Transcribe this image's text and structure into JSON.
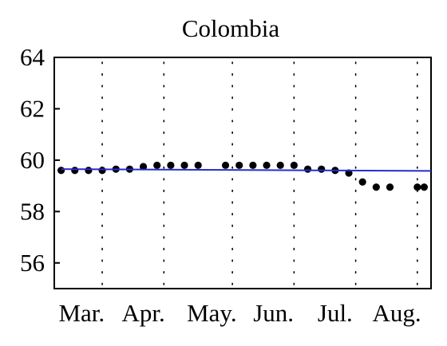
{
  "chart_data": {
    "type": "scatter",
    "title": "Colombia",
    "xlabel": "",
    "ylabel": "",
    "ylim": [
      55,
      64
    ],
    "yticks": [
      56,
      58,
      60,
      62,
      64
    ],
    "x_tick_labels": [
      "Mar.",
      "Apr.",
      "May.",
      "Jun.",
      "Jul.",
      "Aug."
    ],
    "x_tick_label_positions": [
      2,
      6.5,
      11.5,
      16,
      20.5,
      25
    ],
    "x_dotted_gridlines": [
      3.5,
      8,
      13,
      17.5,
      22,
      26.5
    ],
    "xlim": [
      0,
      27.5
    ],
    "grid": "dotted vertical lines",
    "series": [
      {
        "kind": "points",
        "x": [
          0.5,
          1.5,
          2.5,
          3.5,
          4.5,
          5.5,
          6.5,
          7.5,
          8.5,
          9.5,
          10.5,
          12.5,
          13.5,
          14.5,
          15.5,
          16.5,
          17.5,
          18.5,
          19.5,
          20.5,
          21.5,
          22.5,
          23.5,
          24.5,
          26.5,
          27.0
        ],
        "y": [
          59.6,
          59.6,
          59.6,
          59.6,
          59.65,
          59.65,
          59.75,
          59.8,
          59.8,
          59.8,
          59.8,
          59.8,
          59.8,
          59.8,
          59.8,
          59.8,
          59.8,
          59.65,
          59.65,
          59.6,
          59.5,
          59.15,
          58.95,
          58.95,
          58.95,
          58.95
        ],
        "color": "#000000"
      },
      {
        "kind": "trend-line",
        "x": [
          0.5,
          27.5
        ],
        "y": [
          59.65,
          59.58
        ],
        "color": "#2a2ad0"
      }
    ]
  }
}
